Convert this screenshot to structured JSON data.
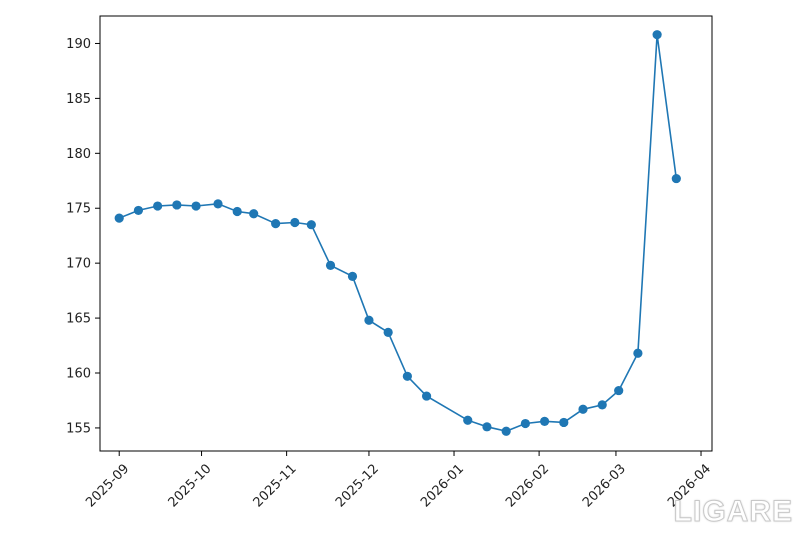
{
  "chart_data": {
    "type": "line",
    "title": "",
    "xlabel": "",
    "ylabel": "",
    "x": [
      "2025-09-01",
      "2025-09-08",
      "2025-09-15",
      "2025-09-22",
      "2025-09-29",
      "2025-10-07",
      "2025-10-14",
      "2025-10-20",
      "2025-10-28",
      "2025-11-04",
      "2025-11-10",
      "2025-11-17",
      "2025-11-25",
      "2025-12-01",
      "2025-12-08",
      "2025-12-15",
      "2025-12-22",
      "2026-01-06",
      "2026-01-13",
      "2026-01-20",
      "2026-01-27",
      "2026-02-03",
      "2026-02-10",
      "2026-02-17",
      "2026-02-24",
      "2026-03-02",
      "2026-03-09",
      "2026-03-16",
      "2026-03-23"
    ],
    "series": [
      {
        "values": [
          174.1,
          174.8,
          175.2,
          175.3,
          175.2,
          175.4,
          174.7,
          174.5,
          173.6,
          173.7,
          173.5,
          169.8,
          168.8,
          164.8,
          163.7,
          159.7,
          157.9,
          155.7,
          155.1,
          154.7,
          155.4,
          155.6,
          155.5,
          156.7,
          157.1,
          158.4,
          161.8,
          190.8,
          177.7
        ],
        "color": "#1f77b4"
      }
    ],
    "x_ticks": [
      "2025-09",
      "2025-10",
      "2025-11",
      "2025-12",
      "2026-01",
      "2026-02",
      "2026-03",
      "2026-04"
    ],
    "y_ticks": [
      155,
      160,
      165,
      170,
      175,
      180,
      185,
      190
    ],
    "xlim": [
      "2025-08-25",
      "2026-04-05"
    ],
    "ylim": [
      152.9,
      192.5
    ],
    "grid": false,
    "legend": "none"
  },
  "watermark": "LIGARE"
}
